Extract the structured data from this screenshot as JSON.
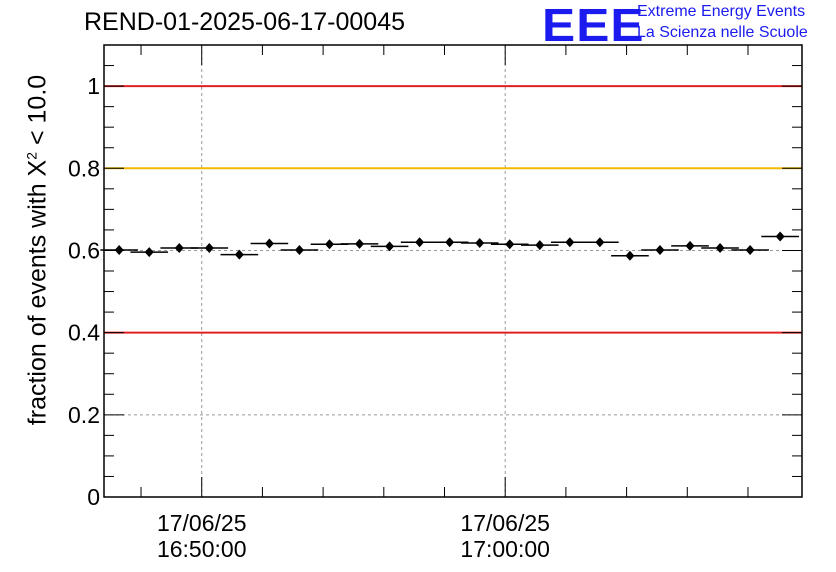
{
  "chart_data": {
    "type": "scatter",
    "title": "REND-01-2025-06-17-00045",
    "ylabel": {
      "prefix": "fraction of events with ",
      "symbol": "X",
      "sup": "2",
      "suffix": " < 10.0"
    },
    "ylim": [
      0,
      1.1
    ],
    "yticks": [
      {
        "value": 0,
        "label": "0"
      },
      {
        "value": 0.2,
        "label": "0.2"
      },
      {
        "value": 0.4,
        "label": "0.4"
      },
      {
        "value": 0.6,
        "label": "0.6"
      },
      {
        "value": 0.8,
        "label": "0.8"
      },
      {
        "value": 1.0,
        "label": "1"
      }
    ],
    "xlim_minutes": [
      -3.22,
      19.78
    ],
    "xticks": [
      {
        "minute": 0,
        "date": "17/06/25",
        "time": "16:50:00"
      },
      {
        "minute": 10,
        "date": "17/06/25",
        "time": "17:00:00"
      }
    ],
    "reference_lines": [
      {
        "value": 1.0,
        "color": "#e02020"
      },
      {
        "value": 0.8,
        "color": "#f5b800"
      },
      {
        "value": 0.4,
        "color": "#e02020"
      }
    ],
    "points": [
      {
        "x": -2.72,
        "y": 0.601
      },
      {
        "x": -1.73,
        "y": 0.596
      },
      {
        "x": -0.74,
        "y": 0.606
      },
      {
        "x": 0.25,
        "y": 0.606
      },
      {
        "x": 1.24,
        "y": 0.59
      },
      {
        "x": 2.23,
        "y": 0.617
      },
      {
        "x": 3.22,
        "y": 0.601
      },
      {
        "x": 4.21,
        "y": 0.615
      },
      {
        "x": 5.2,
        "y": 0.616
      },
      {
        "x": 6.19,
        "y": 0.61
      },
      {
        "x": 7.18,
        "y": 0.62
      },
      {
        "x": 8.17,
        "y": 0.62
      },
      {
        "x": 9.16,
        "y": 0.618
      },
      {
        "x": 10.15,
        "y": 0.615
      },
      {
        "x": 11.14,
        "y": 0.613
      },
      {
        "x": 12.13,
        "y": 0.62
      },
      {
        "x": 13.12,
        "y": 0.62
      },
      {
        "x": 14.11,
        "y": 0.587
      },
      {
        "x": 15.1,
        "y": 0.601
      },
      {
        "x": 16.09,
        "y": 0.611
      },
      {
        "x": 17.08,
        "y": 0.606
      },
      {
        "x": 18.07,
        "y": 0.601
      },
      {
        "x": 19.06,
        "y": 0.634
      }
    ],
    "grid": true
  },
  "logo": {
    "mark": "EEE",
    "line1": "Extreme Energy Events",
    "line2": "La Scienza nelle Scuole",
    "color": "#1b1bf0"
  }
}
